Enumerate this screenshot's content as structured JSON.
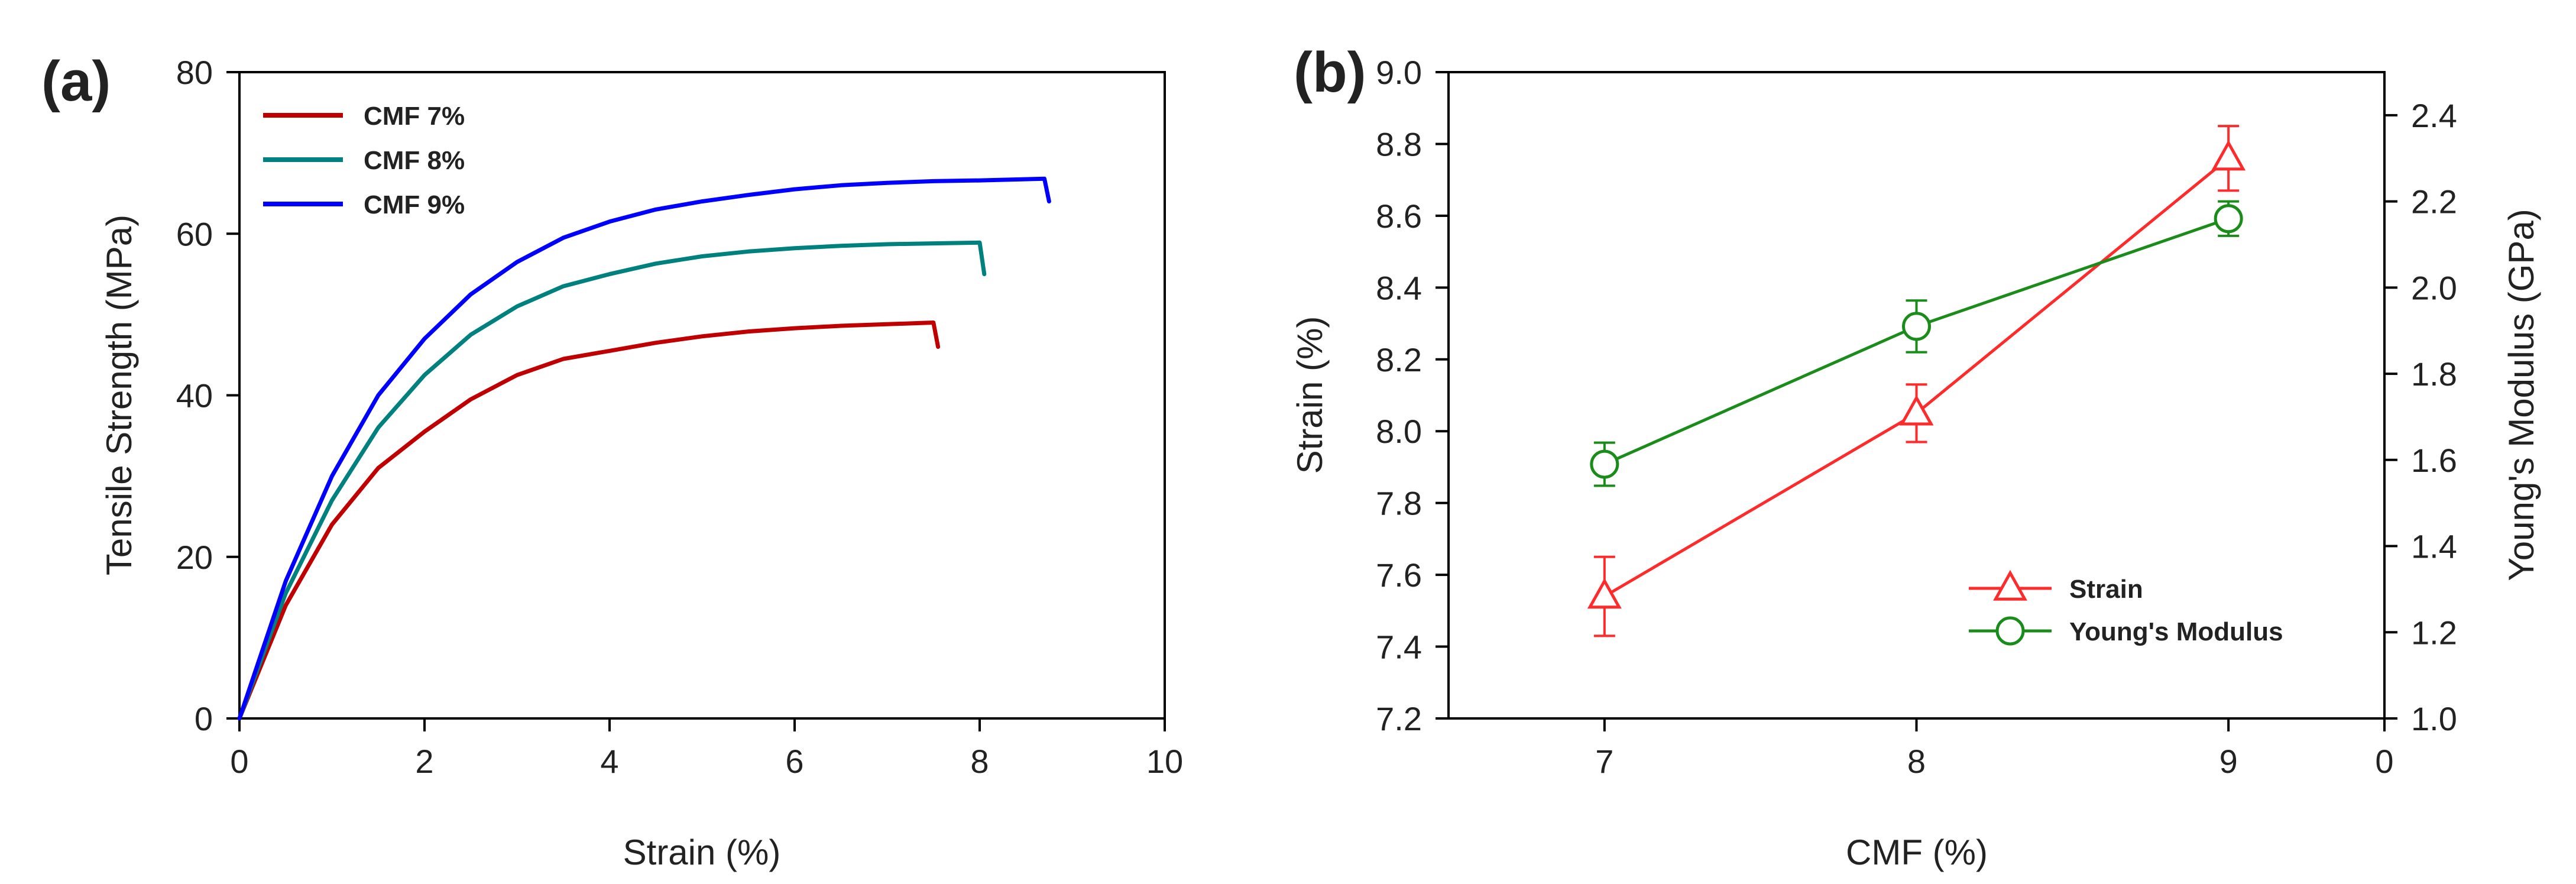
{
  "chart_data": [
    {
      "type": "line",
      "panel_label": "(a)",
      "title": "",
      "xlabel": "Strain (%)",
      "ylabel": "Tensile Strength (MPa)",
      "xlim": [
        0,
        10
      ],
      "ylim": [
        0,
        80
      ],
      "xticks": [
        0,
        2,
        4,
        6,
        8,
        10
      ],
      "yticks": [
        0,
        20,
        40,
        60,
        80
      ],
      "grid": false,
      "legend_position": "top-left",
      "series": [
        {
          "name": "CMF 7%",
          "color": "#c00000",
          "x": [
            0,
            0.5,
            1,
            1.5,
            2,
            2.5,
            3,
            3.5,
            4,
            4.5,
            5,
            5.5,
            6,
            6.5,
            7,
            7.5,
            7.55
          ],
          "y": [
            0,
            14,
            24,
            31,
            35.5,
            39.5,
            42.5,
            44.5,
            45.5,
            46.5,
            47.3,
            47.9,
            48.3,
            48.6,
            48.8,
            49,
            46
          ]
        },
        {
          "name": "CMF 8%",
          "color": "#00807f",
          "x": [
            0,
            0.5,
            1,
            1.5,
            2,
            2.5,
            3,
            3.5,
            4,
            4.5,
            5,
            5.5,
            6,
            6.5,
            7,
            7.5,
            8,
            8.05
          ],
          "y": [
            0,
            15.5,
            27,
            36,
            42.5,
            47.5,
            51,
            53.5,
            55,
            56.3,
            57.2,
            57.8,
            58.2,
            58.5,
            58.7,
            58.8,
            58.9,
            55
          ]
        },
        {
          "name": "CMF 9%",
          "color": "#0000ff",
          "x": [
            0,
            0.5,
            1,
            1.5,
            2,
            2.5,
            3,
            3.5,
            4,
            4.5,
            5,
            5.5,
            6,
            6.5,
            7,
            7.5,
            8,
            8.7,
            8.75
          ],
          "y": [
            0,
            17,
            30,
            40,
            47,
            52.5,
            56.5,
            59.5,
            61.5,
            63,
            64,
            64.8,
            65.5,
            66,
            66.3,
            66.5,
            66.6,
            66.8,
            64
          ]
        }
      ]
    },
    {
      "type": "line",
      "panel_label": "(b)",
      "title": "",
      "xlabel": "CMF (%)",
      "ylabel": "Strain (%)",
      "ylabel_right": "Young's Modulus (GPa)",
      "xlim": [
        6.5,
        9.5
      ],
      "ylim": [
        7.2,
        9.0
      ],
      "ylim_right": [
        1.0,
        2.5
      ],
      "xtick_labels": [
        "7",
        "8",
        "9",
        "0"
      ],
      "ytick_labels": [
        "7.2",
        "7.4",
        "7.6",
        "7.8",
        "8.0",
        "8.2",
        "8.4",
        "8.6",
        "8.8",
        "9.0"
      ],
      "ytick_labels_right": [
        "1.0",
        "1.2",
        "1.4",
        "1.6",
        "1.8",
        "2.0",
        "2.2",
        "2.4"
      ],
      "grid": false,
      "legend_position": "bottom-right",
      "series": [
        {
          "name": "Strain",
          "axis": "left",
          "marker": "triangle",
          "color": "#ff2a2a",
          "x": [
            7,
            8,
            9
          ],
          "values": [
            7.54,
            8.05,
            8.76
          ],
          "errors": [
            0.11,
            0.08,
            0.09
          ]
        },
        {
          "name": "Young's Modulus",
          "axis": "right",
          "marker": "circle",
          "color": "#198c19",
          "x": [
            7,
            8,
            9
          ],
          "values": [
            1.59,
            1.91,
            2.16
          ],
          "errors": [
            0.05,
            0.06,
            0.04
          ]
        }
      ]
    }
  ]
}
